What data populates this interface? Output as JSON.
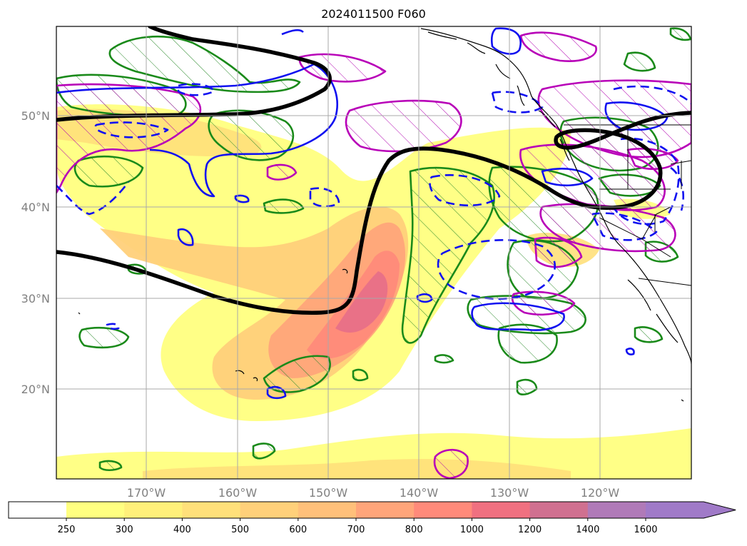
{
  "title": "2024011500 F060",
  "map": {
    "lat_labels": [
      "50°N",
      "40°N",
      "30°N",
      "20°N"
    ],
    "lon_labels": [
      "170°W",
      "160°W",
      "150°W",
      "140°W",
      "130°W",
      "120°W"
    ]
  },
  "colorbar": {
    "labels": [
      "250",
      "300",
      "400",
      "500",
      "600",
      "700",
      "800",
      "1000",
      "1200",
      "1400",
      "1600"
    ],
    "colors": [
      "#ffff80",
      "#fff07a",
      "#ffe07a",
      "#ffd07a",
      "#ffc07a",
      "#ffa57a",
      "#ff8a7a",
      "#f07080",
      "#d07090",
      "#b07ab8",
      "#a07ac8"
    ]
  }
}
